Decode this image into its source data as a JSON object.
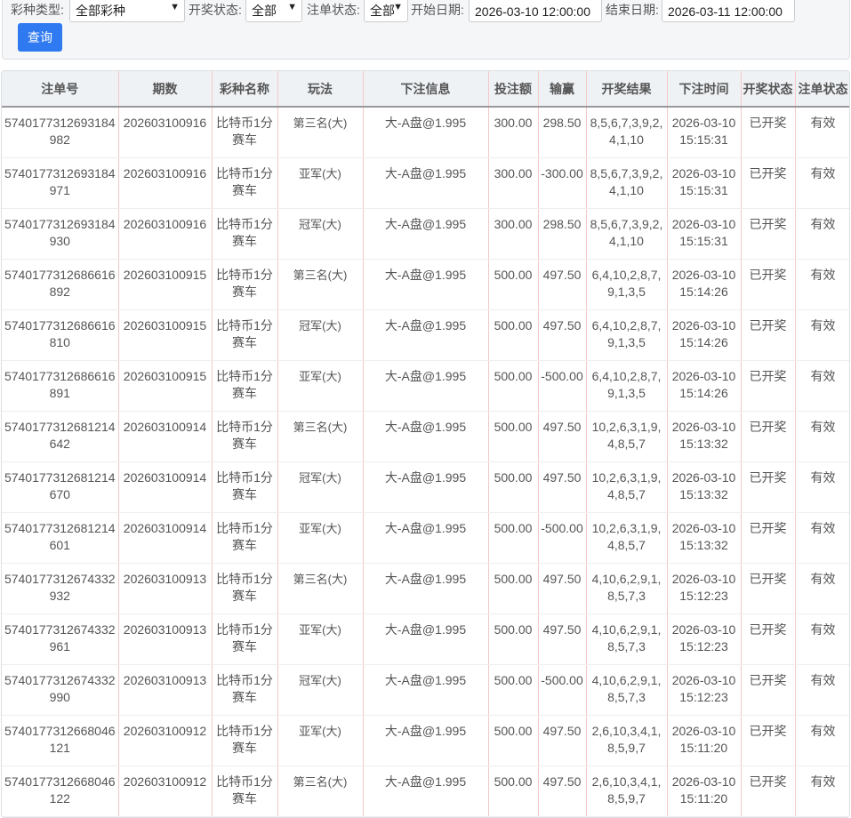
{
  "filters": {
    "lottery_type_label": "彩种类型:",
    "lottery_type_value": "全部彩种",
    "draw_status_label": "开奖状态:",
    "draw_status_value": "全部",
    "bet_status_label": "注单状态:",
    "bet_status_value": "全部",
    "start_date_label": "开始日期:",
    "start_date_value": "2026-03-10 12:00:00",
    "end_date_label": "结束日期:",
    "end_date_value": "2026-03-11 12:00:00",
    "query_button": "查询"
  },
  "table": {
    "headers": [
      "注单号",
      "期数",
      "彩种名称",
      "玩法",
      "下注信息",
      "投注额",
      "输赢",
      "开奖结果",
      "下注时间",
      "开奖状态",
      "注单状态"
    ],
    "rows": [
      [
        "5740177312693184982",
        "202603100916",
        "比特币1分赛车",
        "第三名(大)",
        "大-A盘@1.995",
        "300.00",
        "298.50",
        "8,5,6,7,3,9,2,4,1,10",
        "2026-03-10 15:15:31",
        "已开奖",
        "有效"
      ],
      [
        "5740177312693184971",
        "202603100916",
        "比特币1分赛车",
        "亚军(大)",
        "大-A盘@1.995",
        "300.00",
        "-300.00",
        "8,5,6,7,3,9,2,4,1,10",
        "2026-03-10 15:15:31",
        "已开奖",
        "有效"
      ],
      [
        "5740177312693184930",
        "202603100916",
        "比特币1分赛车",
        "冠军(大)",
        "大-A盘@1.995",
        "300.00",
        "298.50",
        "8,5,6,7,3,9,2,4,1,10",
        "2026-03-10 15:15:31",
        "已开奖",
        "有效"
      ],
      [
        "5740177312686616892",
        "202603100915",
        "比特币1分赛车",
        "第三名(大)",
        "大-A盘@1.995",
        "500.00",
        "497.50",
        "6,4,10,2,8,7,9,1,3,5",
        "2026-03-10 15:14:26",
        "已开奖",
        "有效"
      ],
      [
        "5740177312686616810",
        "202603100915",
        "比特币1分赛车",
        "冠军(大)",
        "大-A盘@1.995",
        "500.00",
        "497.50",
        "6,4,10,2,8,7,9,1,3,5",
        "2026-03-10 15:14:26",
        "已开奖",
        "有效"
      ],
      [
        "5740177312686616891",
        "202603100915",
        "比特币1分赛车",
        "亚军(大)",
        "大-A盘@1.995",
        "500.00",
        "-500.00",
        "6,4,10,2,8,7,9,1,3,5",
        "2026-03-10 15:14:26",
        "已开奖",
        "有效"
      ],
      [
        "5740177312681214642",
        "202603100914",
        "比特币1分赛车",
        "第三名(大)",
        "大-A盘@1.995",
        "500.00",
        "497.50",
        "10,2,6,3,1,9,4,8,5,7",
        "2026-03-10 15:13:32",
        "已开奖",
        "有效"
      ],
      [
        "5740177312681214670",
        "202603100914",
        "比特币1分赛车",
        "冠军(大)",
        "大-A盘@1.995",
        "500.00",
        "497.50",
        "10,2,6,3,1,9,4,8,5,7",
        "2026-03-10 15:13:32",
        "已开奖",
        "有效"
      ],
      [
        "5740177312681214601",
        "202603100914",
        "比特币1分赛车",
        "亚军(大)",
        "大-A盘@1.995",
        "500.00",
        "-500.00",
        "10,2,6,3,1,9,4,8,5,7",
        "2026-03-10 15:13:32",
        "已开奖",
        "有效"
      ],
      [
        "5740177312674332932",
        "202603100913",
        "比特币1分赛车",
        "第三名(大)",
        "大-A盘@1.995",
        "500.00",
        "497.50",
        "4,10,6,2,9,1,8,5,7,3",
        "2026-03-10 15:12:23",
        "已开奖",
        "有效"
      ],
      [
        "5740177312674332961",
        "202603100913",
        "比特币1分赛车",
        "亚军(大)",
        "大-A盘@1.995",
        "500.00",
        "497.50",
        "4,10,6,2,9,1,8,5,7,3",
        "2026-03-10 15:12:23",
        "已开奖",
        "有效"
      ],
      [
        "5740177312674332990",
        "202603100913",
        "比特币1分赛车",
        "冠军(大)",
        "大-A盘@1.995",
        "500.00",
        "-500.00",
        "4,10,6,2,9,1,8,5,7,3",
        "2026-03-10 15:12:23",
        "已开奖",
        "有效"
      ],
      [
        "5740177312668046121",
        "202603100912",
        "比特币1分赛车",
        "亚军(大)",
        "大-A盘@1.995",
        "500.00",
        "497.50",
        "2,6,10,3,4,1,8,5,9,7",
        "2026-03-10 15:11:20",
        "已开奖",
        "有效"
      ],
      [
        "5740177312668046122",
        "202603100912",
        "比特币1分赛车",
        "第三名(大)",
        "大-A盘@1.995",
        "500.00",
        "497.50",
        "2,6,10,3,4,1,8,5,9,7",
        "2026-03-10 15:11:20",
        "已开奖",
        "有效"
      ]
    ]
  }
}
